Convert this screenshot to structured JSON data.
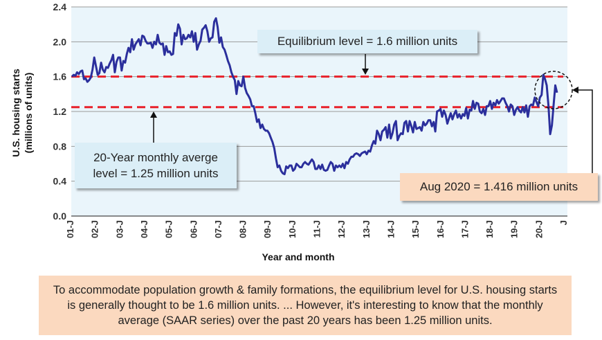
{
  "chart_data": {
    "type": "line",
    "title": "",
    "xlabel": "Year and month",
    "ylabel": "U.S. housing starts (millions of units)",
    "ylim": [
      0,
      2.4
    ],
    "yticks": [
      "0.0",
      "0.4",
      "0.8",
      "1.2",
      "1.6",
      "2.0",
      "2.4"
    ],
    "xticks": [
      "01-J",
      "02-J",
      "03-J",
      "04-J",
      "05-J",
      "06-J",
      "07-J",
      "08-J",
      "09-J",
      "10-J",
      "11-J",
      "12-J",
      "13-J",
      "14-J",
      "15-J",
      "16-J",
      "17-J",
      "18-J",
      "19-J",
      "20-J",
      "J"
    ],
    "grid": true,
    "x_start": "2001-01",
    "x_end": "2020-08",
    "series": [
      {
        "values": [
          1.6,
          1.62,
          1.61,
          1.65,
          1.63,
          1.66,
          1.67,
          1.57,
          1.58,
          1.54,
          1.56,
          1.59,
          1.68,
          1.82,
          1.72,
          1.62,
          1.64,
          1.76,
          1.68,
          1.65,
          1.71,
          1.7,
          1.75,
          1.79,
          1.85,
          1.65,
          1.77,
          1.82,
          1.82,
          1.67,
          1.78,
          1.76,
          1.86,
          1.93,
          1.88,
          2.03,
          1.91,
          1.97,
          2.0,
          2.03,
          1.96,
          2.07,
          2.06,
          2.01,
          1.98,
          1.98,
          1.99,
          1.93,
          2.0,
          1.97,
          2.08,
          1.99,
          1.97,
          1.98,
          1.85,
          1.95,
          1.88,
          1.89,
          1.85,
          1.86,
          2.1,
          2.07,
          2.2,
          2.15,
          1.97,
          2.08,
          2.03,
          2.04,
          2.08,
          2.05,
          2.12,
          2.0,
          2.1,
          1.91,
          1.97,
          2.01,
          2.14,
          2.16,
          2.19,
          2.12,
          2.0,
          2.04,
          2.05,
          2.23,
          2.27,
          2.17,
          1.99,
          2.05,
          1.94,
          1.91,
          1.85,
          1.78,
          1.73,
          1.65,
          1.6,
          1.56,
          1.4,
          1.55,
          1.5,
          1.49,
          1.6,
          1.47,
          1.41,
          1.38,
          1.34,
          1.26,
          1.26,
          1.18,
          1.08,
          1.11,
          1.01,
          1.05,
          1.0,
          0.98,
          0.98,
          0.95,
          0.9,
          0.85,
          0.78,
          0.66,
          0.56,
          0.58,
          0.52,
          0.49,
          0.48,
          0.57,
          0.55,
          0.58,
          0.58,
          0.52,
          0.54,
          0.6,
          0.58,
          0.56,
          0.56,
          0.6,
          0.62,
          0.6,
          0.59,
          0.62,
          0.65,
          0.62,
          0.54,
          0.54,
          0.58,
          0.54,
          0.59,
          0.53,
          0.52,
          0.53,
          0.58,
          0.62,
          0.6,
          0.52,
          0.58,
          0.56,
          0.58,
          0.56,
          0.6,
          0.55,
          0.62,
          0.6,
          0.65,
          0.68,
          0.68,
          0.71,
          0.72,
          0.71,
          0.69,
          0.72,
          0.73,
          0.74,
          0.71,
          0.75,
          0.74,
          0.81,
          0.86,
          0.83,
          0.98,
          0.94,
          0.87,
          0.97,
          0.99,
          1.02,
          0.9,
          1.05,
          0.89,
          0.95,
          1.05,
          1.09,
          0.87,
          0.92,
          0.95,
          0.94,
          1.07,
          1.09,
          0.97,
          1.09,
          1.03,
          0.96,
          1.08,
          1.0,
          1.01,
          1.02,
          0.98,
          1.08,
          1.04,
          1.06,
          1.1,
          1.1,
          1.03,
          1.08,
          0.97,
          1.2,
          1.21,
          1.23,
          1.14,
          1.21,
          1.16,
          1.06,
          1.12,
          1.18,
          1.11,
          1.17,
          1.21,
          1.13,
          1.17,
          1.12,
          1.17,
          1.15,
          1.24,
          1.12,
          1.22,
          1.21,
          1.32,
          1.23,
          1.3,
          1.29,
          1.2,
          1.18,
          1.23,
          1.16,
          1.26,
          1.26,
          1.32,
          1.23,
          1.3,
          1.27,
          1.33,
          1.29,
          1.32,
          1.35,
          1.35,
          1.3,
          1.26,
          1.2,
          1.28,
          1.26,
          1.16,
          1.22,
          1.25,
          1.21,
          1.19,
          1.25,
          1.19,
          1.27,
          1.14,
          1.26,
          1.28,
          1.27,
          1.36,
          1.31,
          1.26,
          1.36,
          1.39,
          1.62,
          1.57,
          1.5,
          1.27,
          0.94,
          1.04,
          1.27,
          1.5,
          1.416
        ]
      }
    ],
    "reference_lines": [
      {
        "y": 1.6,
        "color": "#e8202a",
        "style": "dashed"
      },
      {
        "y": 1.25,
        "color": "#e8202a",
        "style": "dashed"
      }
    ],
    "annotations": {
      "equilibrium": "Equilibrium level  = 1.6 million units",
      "average_line1": "20-Year monthly averge",
      "average_line2": "level = 1.25 million units",
      "latest": "Aug 2020 = 1.416 million units"
    },
    "note": "To accommodate population growth & family formations, the equilibrium level for U.S. housing starts is generally thought to be 1.6 million units. ... However, it's interesting to know that the monthly average (SAAR series) over the past 20 years has been 1.25 million units."
  },
  "colors": {
    "plot_background": "#eaf5fb",
    "series_line": "#2b2f9c",
    "reference_line": "#e8202a",
    "blue_callout": "#dbeef7",
    "orange_callout": "#fbd9bf"
  }
}
